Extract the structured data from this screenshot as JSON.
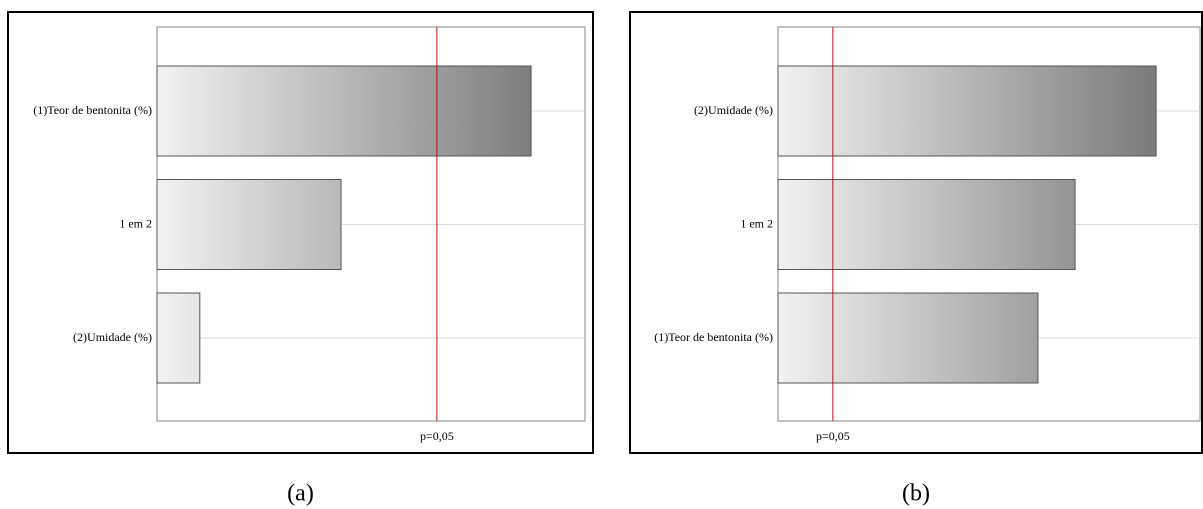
{
  "chart_data": [
    {
      "type": "bar",
      "orientation": "horizontal",
      "categories": [
        "(1)Teor de bentonita (%)",
        "1 em 2",
        "(2)Umidade (%)"
      ],
      "values": [
        8.74,
        4.3,
        1.0
      ],
      "xlim": [
        0,
        10
      ],
      "reference": {
        "value": 6.54,
        "label": "p=0,05",
        "color": "#e00000"
      },
      "colors": [
        "#f2f2f2",
        "#7a7a7a"
      ],
      "grid": true,
      "caption": "(a)"
    },
    {
      "type": "bar",
      "orientation": "horizontal",
      "categories": [
        "(2)Umidade (%)",
        "1 em 2",
        "(1)Teor de bentonita (%)"
      ],
      "values": [
        8.96,
        7.04,
        6.16
      ],
      "xlim": [
        0,
        10
      ],
      "reference": {
        "value": 1.3,
        "label": "p=0,05",
        "color": "#e00000"
      },
      "colors": [
        "#f2f2f2",
        "#7a7a7a"
      ],
      "grid": true,
      "caption": "(b)"
    }
  ]
}
